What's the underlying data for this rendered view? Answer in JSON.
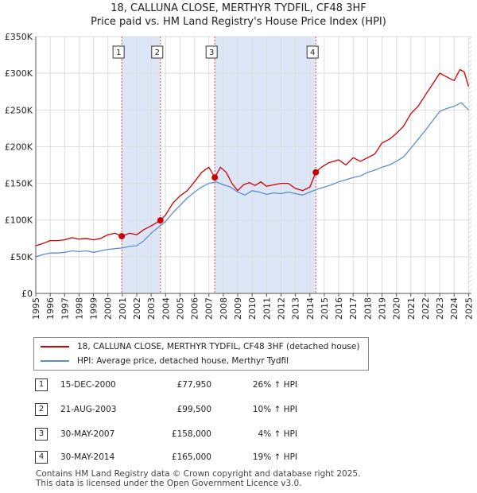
{
  "title": {
    "line1": "18, CALLUNA CLOSE, MERTHYR TYDFIL, CF48 3HF",
    "line2": "Price paid vs. HM Land Registry's House Price Index (HPI)"
  },
  "colors": {
    "price_line": "#cc0000",
    "hpi_line": "#5b8fcf",
    "shade": "#dde6f7",
    "grid": "#dddddd",
    "marker_line": "#e05050"
  },
  "chart_data": {
    "type": "line",
    "title": "Price paid vs. HM Land Registry's House Price Index (HPI)",
    "xlabel": "",
    "ylabel": "",
    "xlim": [
      1995,
      2025.2
    ],
    "ylim": [
      0,
      350000
    ],
    "y_ticks": [
      0,
      50000,
      100000,
      150000,
      200000,
      250000,
      300000,
      350000
    ],
    "y_tick_labels": [
      "£0",
      "£50K",
      "£100K",
      "£150K",
      "£200K",
      "£250K",
      "£300K",
      "£350K"
    ],
    "x_ticks": [
      1995,
      1996,
      1997,
      1998,
      1999,
      2000,
      2001,
      2002,
      2003,
      2004,
      2005,
      2006,
      2007,
      2008,
      2009,
      2010,
      2011,
      2012,
      2013,
      2014,
      2015,
      2016,
      2017,
      2018,
      2019,
      2020,
      2021,
      2022,
      2023,
      2024,
      2025
    ],
    "grid": true,
    "series": [
      {
        "name": "18, CALLUNA CLOSE, MERTHYR TYDFIL, CF48 3HF (detached house)",
        "x": [
          1995.0,
          1995.5,
          1996.0,
          1996.5,
          1997.0,
          1997.5,
          1998.0,
          1998.5,
          1999.0,
          1999.5,
          2000.0,
          2000.5,
          2000.96,
          2001.5,
          2002.0,
          2002.5,
          2003.0,
          2003.64,
          2004.0,
          2004.5,
          2005.0,
          2005.5,
          2006.0,
          2006.5,
          2007.0,
          2007.41,
          2007.8,
          2008.2,
          2008.6,
          2009.0,
          2009.4,
          2009.8,
          2010.2,
          2010.6,
          2011.0,
          2011.5,
          2012.0,
          2012.5,
          2013.0,
          2013.5,
          2014.0,
          2014.41,
          2014.8,
          2015.3,
          2016.0,
          2016.5,
          2017.0,
          2017.5,
          2018.0,
          2018.5,
          2019.0,
          2019.5,
          2020.0,
          2020.5,
          2021.0,
          2021.5,
          2022.0,
          2022.5,
          2023.0,
          2023.5,
          2024.0,
          2024.4,
          2024.7,
          2025.0
        ],
        "values": [
          65000,
          68000,
          72000,
          72000,
          73000,
          76000,
          74000,
          75000,
          73000,
          75000,
          80000,
          82000,
          77950,
          82000,
          80000,
          87000,
          92000,
          99500,
          107000,
          123000,
          133000,
          140000,
          152000,
          165000,
          172000,
          158000,
          172000,
          165000,
          150000,
          140000,
          148000,
          151000,
          147000,
          152000,
          146000,
          148000,
          150000,
          150000,
          143000,
          140000,
          145000,
          165000,
          172000,
          178000,
          182000,
          175000,
          185000,
          180000,
          185000,
          190000,
          205000,
          210000,
          218000,
          228000,
          245000,
          255000,
          270000,
          285000,
          300000,
          295000,
          290000,
          305000,
          302000,
          282000
        ]
      },
      {
        "name": "HPI: Average price, detached house, Merthyr Tydfil",
        "x": [
          1995.0,
          1995.5,
          1996.0,
          1996.5,
          1997.0,
          1997.5,
          1998.0,
          1998.5,
          1999.0,
          1999.5,
          2000.0,
          2000.5,
          2001.0,
          2001.5,
          2002.0,
          2002.5,
          2003.0,
          2003.5,
          2004.0,
          2004.5,
          2005.0,
          2005.5,
          2006.0,
          2006.5,
          2007.0,
          2007.5,
          2008.0,
          2008.5,
          2009.0,
          2009.5,
          2010.0,
          2010.5,
          2011.0,
          2011.5,
          2012.0,
          2012.5,
          2013.0,
          2013.5,
          2014.0,
          2014.5,
          2015.0,
          2015.5,
          2016.0,
          2016.5,
          2017.0,
          2017.5,
          2018.0,
          2018.5,
          2019.0,
          2019.5,
          2020.0,
          2020.5,
          2021.0,
          2021.5,
          2022.0,
          2022.5,
          2023.0,
          2023.5,
          2024.0,
          2024.5,
          2025.0
        ],
        "values": [
          50000,
          53000,
          55000,
          55000,
          56000,
          58000,
          57000,
          58000,
          56000,
          58000,
          60000,
          61000,
          62000,
          64000,
          65000,
          72000,
          82000,
          90000,
          98000,
          110000,
          120000,
          130000,
          138000,
          145000,
          150000,
          152000,
          148000,
          145000,
          138000,
          134000,
          140000,
          138000,
          135000,
          137000,
          136000,
          138000,
          136000,
          134000,
          138000,
          142000,
          145000,
          148000,
          152000,
          155000,
          158000,
          160000,
          165000,
          168000,
          172000,
          175000,
          180000,
          186000,
          198000,
          210000,
          222000,
          235000,
          248000,
          252000,
          255000,
          260000,
          250000
        ]
      }
    ],
    "sales": [
      {
        "num": "1",
        "x": 2000.96,
        "value": 77950,
        "date": "15-DEC-2000",
        "price": "£77,950",
        "hpi": "26% ↑ HPI"
      },
      {
        "num": "2",
        "x": 2003.64,
        "value": 99500,
        "date": "21-AUG-2003",
        "price": "£99,500",
        "hpi": "10% ↑ HPI"
      },
      {
        "num": "3",
        "x": 2007.41,
        "value": 158000,
        "date": "30-MAY-2007",
        "price": "£158,000",
        "hpi": "4% ↑ HPI"
      },
      {
        "num": "4",
        "x": 2014.41,
        "value": 165000,
        "date": "30-MAY-2014",
        "price": "£165,000",
        "hpi": "19% ↑ HPI"
      }
    ],
    "shaded_ranges": [
      [
        2000.96,
        2003.64
      ],
      [
        2007.41,
        2014.41
      ]
    ]
  },
  "legend": {
    "price_label": "18, CALLUNA CLOSE, MERTHYR TYDFIL, CF48 3HF (detached house)",
    "hpi_label": "HPI: Average price, detached house, Merthyr Tydfil"
  },
  "footer": {
    "line1": "Contains HM Land Registry data © Crown copyright and database right 2025.",
    "line2": "This data is licensed under the Open Government Licence v3.0."
  }
}
